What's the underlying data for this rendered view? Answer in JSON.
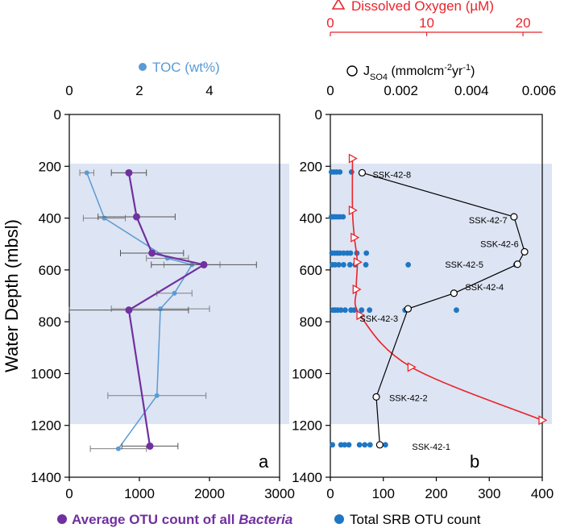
{
  "chart_data": [
    {
      "id": "a",
      "type": "line",
      "panel_label": "a",
      "ylabel": "Water Depth (mbsl)",
      "ylim": [
        0,
        1400
      ],
      "yticks": [
        0,
        200,
        400,
        600,
        800,
        1000,
        1200,
        1400
      ],
      "shaded_depth_range": [
        190,
        1195
      ],
      "top_axis": {
        "label": "TOC (wt%)",
        "color": "#5b9bd5",
        "lim": [
          0,
          6
        ],
        "ticks": [
          0,
          2,
          4
        ],
        "series": {
          "name": "TOC (wt%)",
          "depth": [
            225,
            400,
            555,
            580,
            690,
            750,
            1085,
            1290
          ],
          "values": [
            0.5,
            1.0,
            2.8,
            3.5,
            3.0,
            2.6,
            2.5,
            1.4
          ],
          "err": [
            0.2,
            0.6,
            0.6,
            0.8,
            0.5,
            1.4,
            1.4,
            0.8
          ]
        }
      },
      "bottom_axis": {
        "label_prefix": "Average OTU count of all ",
        "label_italic": "Bacteria",
        "color": "#7030a0",
        "lim": [
          0,
          3000
        ],
        "ticks": [
          0,
          1000,
          2000,
          3000
        ],
        "series": {
          "name": "Average OTU count of all Bacteria",
          "depth": [
            225,
            395,
            535,
            580,
            755,
            1280
          ],
          "values": [
            850,
            960,
            1180,
            1920,
            850,
            1150
          ],
          "err": [
            250,
            550,
            450,
            750,
            850,
            400
          ]
        }
      }
    },
    {
      "id": "b",
      "type": "line",
      "panel_label": "b",
      "ylim": [
        0,
        1400
      ],
      "yticks": [
        0,
        200,
        400,
        600,
        800,
        1000,
        1200,
        1400
      ],
      "shaded_depth_range": [
        190,
        1195
      ],
      "do_axis": {
        "label": "Dissolved Oxygen (µM)",
        "color": "#e8252b",
        "lim": [
          0,
          22
        ],
        "ticks": [
          0,
          10,
          20
        ],
        "series": {
          "name": "Dissolved Oxygen",
          "depth": [
            170,
            370,
            475,
            570,
            675,
            775,
            975,
            1180
          ],
          "values": [
            2.3,
            2.3,
            2.5,
            2.8,
            2.7,
            3.1,
            8.4,
            22.0
          ]
        }
      },
      "jso4_axis": {
        "label_main": "J",
        "label_sub": "SO4",
        "label_unit_a": " (mmolcm",
        "label_sup_a": "-2",
        "label_unit_b": "yr",
        "label_sup_b": "-1",
        "label_end": ")",
        "lim": [
          0,
          0.006
        ],
        "ticks": [
          "0",
          "0.002",
          "0.004",
          "0.006"
        ],
        "tick_values": [
          0,
          0.002,
          0.004,
          0.006
        ],
        "series": {
          "name": "J SO4",
          "depth": [
            225,
            395,
            530,
            578,
            690,
            750,
            1090,
            1275
          ],
          "values": [
            0.0009,
            0.0052,
            0.0055,
            0.0053,
            0.0035,
            0.0022,
            0.0013,
            0.0014
          ],
          "stations": [
            "SSK-42-8",
            "SSK-42-7",
            "SSK-42-6",
            "SSK-42-5",
            "SSK-42-4",
            "SSK-42-3",
            "SSK-42-2",
            "SSK-42-1"
          ]
        }
      },
      "bottom_axis": {
        "label": "Total SRB OTU count",
        "color": "#1f77c4",
        "lim": [
          0,
          400
        ],
        "ticks": [
          0,
          100,
          200,
          300,
          400
        ],
        "series": {
          "name": "Total SRB OTU count",
          "points": [
            {
              "depth": 222,
              "values": [
                2,
                7,
                12,
                18,
                40
              ]
            },
            {
              "depth": 395,
              "values": [
                2,
                5,
                9,
                13,
                18,
                24
              ]
            },
            {
              "depth": 535,
              "values": [
                3,
                8,
                13,
                18,
                25,
                32,
                38,
                50,
                68
              ]
            },
            {
              "depth": 580,
              "values": [
                4,
                9,
                16,
                25,
                37,
                47,
                67,
                147,
                350
              ]
            },
            {
              "depth": 755,
              "values": [
                5,
                9,
                14,
                20,
                28,
                39,
                45,
                59,
                74,
                141,
                238
              ]
            },
            {
              "depth": 1275,
              "values": [
                4,
                20,
                27,
                35,
                55,
                65,
                75,
                104
              ]
            }
          ]
        }
      }
    }
  ]
}
